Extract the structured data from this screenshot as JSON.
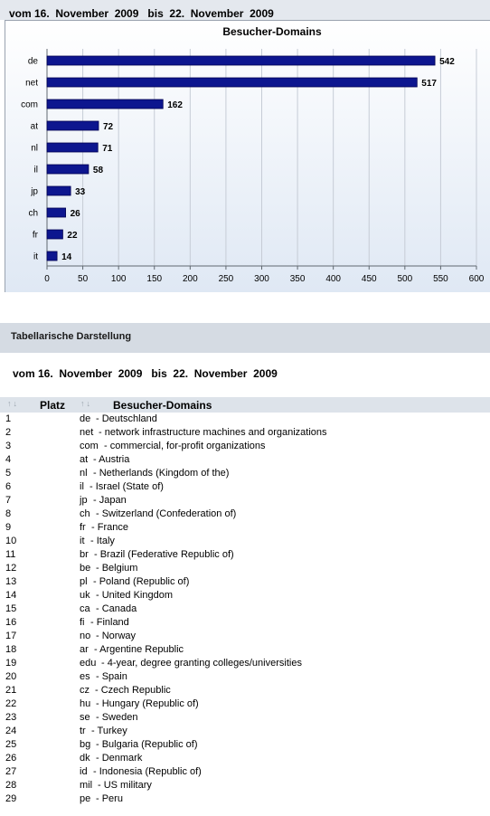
{
  "date_range": "vom 16.  November  2009   bis  22.  November  2009",
  "chart_data": {
    "type": "bar",
    "orientation": "horizontal",
    "title": "Besucher-Domains",
    "categories": [
      "de",
      "net",
      "com",
      "at",
      "nl",
      "il",
      "jp",
      "ch",
      "fr",
      "it"
    ],
    "values": [
      542,
      517,
      162,
      72,
      71,
      58,
      33,
      26,
      22,
      14
    ],
    "xlim": [
      0,
      600
    ],
    "xticks": [
      "0",
      "50",
      "100",
      "150",
      "200",
      "250",
      "300",
      "350",
      "400",
      "450",
      "500",
      "550",
      "600"
    ],
    "grid": true,
    "bar_color": "#0d168f"
  },
  "table_section": {
    "title": "Tabellarische Darstellung",
    "date_range": "vom 16.  November  2009   bis  22.  November  2009",
    "columns": [
      "Platz",
      "Besucher-Domains"
    ],
    "rows": [
      {
        "rank": "1",
        "code": "de",
        "name": "- Deutschland"
      },
      {
        "rank": "2",
        "code": "net",
        "name": "- network infrastructure machines and organizations"
      },
      {
        "rank": "3",
        "code": "com",
        "name": "- commercial, for-profit organizations"
      },
      {
        "rank": "4",
        "code": "at",
        "name": "- Austria"
      },
      {
        "rank": "5",
        "code": "nl",
        "name": "- Netherlands (Kingdom of the)"
      },
      {
        "rank": "6",
        "code": "il",
        "name": "- Israel (State of)"
      },
      {
        "rank": "7",
        "code": "jp",
        "name": "- Japan"
      },
      {
        "rank": "8",
        "code": "ch",
        "name": "- Switzerland (Confederation of)"
      },
      {
        "rank": "9",
        "code": "fr",
        "name": "- France"
      },
      {
        "rank": "10",
        "code": "it",
        "name": "- Italy"
      },
      {
        "rank": "11",
        "code": "br",
        "name": "- Brazil (Federative Republic of)"
      },
      {
        "rank": "12",
        "code": "be",
        "name": "- Belgium"
      },
      {
        "rank": "13",
        "code": "pl",
        "name": "- Poland (Republic of)"
      },
      {
        "rank": "14",
        "code": "uk",
        "name": "- United Kingdom"
      },
      {
        "rank": "15",
        "code": "ca",
        "name": "- Canada"
      },
      {
        "rank": "16",
        "code": "fi",
        "name": "- Finland"
      },
      {
        "rank": "17",
        "code": "no",
        "name": "- Norway"
      },
      {
        "rank": "18",
        "code": "ar",
        "name": "- Argentine Republic"
      },
      {
        "rank": "19",
        "code": "edu",
        "name": "- 4-year, degree granting colleges/universities"
      },
      {
        "rank": "20",
        "code": "es",
        "name": "- Spain"
      },
      {
        "rank": "21",
        "code": "cz",
        "name": "- Czech Republic"
      },
      {
        "rank": "22",
        "code": "hu",
        "name": "- Hungary (Republic of)"
      },
      {
        "rank": "23",
        "code": "se",
        "name": "- Sweden"
      },
      {
        "rank": "24",
        "code": "tr",
        "name": "- Turkey"
      },
      {
        "rank": "25",
        "code": "bg",
        "name": "- Bulgaria (Republic of)"
      },
      {
        "rank": "26",
        "code": "dk",
        "name": "- Denmark"
      },
      {
        "rank": "27",
        "code": "id",
        "name": "- Indonesia (Republic of)"
      },
      {
        "rank": "28",
        "code": "mil",
        "name": "- US military"
      },
      {
        "rank": "29",
        "code": "pe",
        "name": "- Peru"
      }
    ]
  }
}
